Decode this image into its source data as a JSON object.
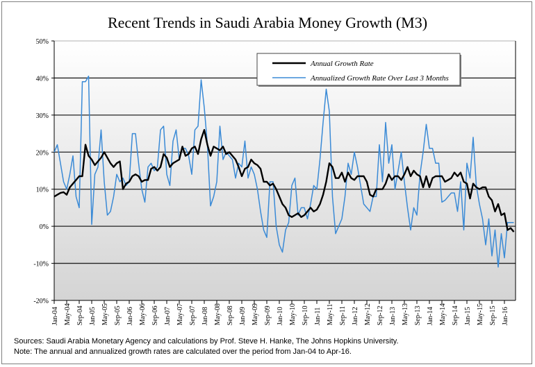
{
  "chart_data": {
    "type": "line",
    "title": "Recent Trends in Saudi Arabia Money Growth (M3)",
    "xlabel": "",
    "ylabel": "",
    "ylim": [
      -20,
      50
    ],
    "yticks": [
      "-20%",
      "-10%",
      "0%",
      "10%",
      "20%",
      "30%",
      "40%",
      "50%"
    ],
    "ytick_values": [
      -20,
      -10,
      0,
      10,
      20,
      30,
      40,
      50
    ],
    "start_month": "Jan-04",
    "end_month": "Apr-16",
    "xtick_labels": [
      "Jan-04",
      "May-04",
      "Sep-04",
      "Jan-05",
      "May-05",
      "Sep-05",
      "Jan-06",
      "May-06",
      "Sep-06",
      "Jan-07",
      "May-07",
      "Sep-07",
      "Jan-08",
      "May-08",
      "Sep-08",
      "Jan-09",
      "May-09",
      "Sep-09",
      "Jan-10",
      "May-10",
      "Sep-10",
      "Jan-11",
      "May-11",
      "Sep-11",
      "Jan-12",
      "May-12",
      "Sep-12",
      "Jan-13",
      "May-13",
      "Sep-13",
      "Jan-14",
      "May-14",
      "Sep-14",
      "Jan-15",
      "May-15",
      "Sep-15",
      "Jan-16"
    ],
    "grid": true,
    "legend_position": "top-right",
    "series": [
      {
        "name": "Annual Growth Rate",
        "color": "#000000",
        "values": [
          8,
          8.5,
          9,
          9.2,
          8.5,
          10.5,
          11.5,
          12.5,
          13.5,
          13.5,
          22,
          19,
          18,
          16.5,
          17.5,
          18.5,
          20,
          18.5,
          17,
          16,
          17,
          17.5,
          10,
          11.5,
          12,
          13.5,
          14,
          13.5,
          12,
          12.5,
          12.5,
          15.5,
          16,
          15,
          16,
          19.5,
          18.5,
          16,
          17,
          17.5,
          18,
          21.5,
          19,
          19.5,
          21,
          21.5,
          19.5,
          23.5,
          26,
          22,
          19,
          21.5,
          21,
          20.5,
          21.5,
          19.5,
          20,
          19,
          18,
          16,
          13.5,
          15.5,
          16,
          18,
          17,
          16.5,
          15.5,
          12,
          12,
          11,
          11.5,
          10,
          8,
          6,
          5,
          3,
          2.5,
          3,
          3.5,
          2.5,
          3,
          4,
          5,
          4,
          4.5,
          6,
          8.5,
          12,
          17,
          16,
          13,
          13,
          14.5,
          12,
          14.5,
          13,
          12.5,
          13.5,
          13.5,
          13.5,
          12,
          8.5,
          8,
          10,
          10,
          10,
          11.5,
          14,
          12.5,
          13.5,
          13.5,
          12.5,
          14,
          16,
          13.5,
          15,
          14,
          13.5,
          10.5,
          13.5,
          10.5,
          13,
          13.5,
          13.5,
          13.5,
          12,
          12.5,
          13,
          14.5,
          13.5,
          14.5,
          12,
          11.5,
          7.5,
          11.5,
          10.5,
          10,
          10.5,
          10.5,
          8,
          7,
          4,
          6,
          3,
          3.5,
          -1,
          -0.5,
          -1.5
        ]
      },
      {
        "name": "Annualized Growth Rate Over  Last 3 Months",
        "color": "#3a8ad6",
        "values": [
          20,
          22,
          17,
          12,
          10,
          14,
          19,
          8,
          5,
          39,
          39,
          40.5,
          0.5,
          14,
          16,
          26,
          12,
          3,
          4,
          8,
          14,
          12,
          13,
          11,
          12,
          25,
          25,
          17,
          10,
          6.5,
          16,
          17,
          15,
          16,
          26,
          27,
          14,
          11,
          23,
          26,
          18,
          21,
          21,
          19,
          14,
          26,
          27,
          39.5,
          32,
          22,
          5.5,
          8,
          12,
          27,
          18,
          20,
          19,
          18,
          13,
          17,
          16,
          23,
          13,
          16,
          14,
          10,
          4,
          -1,
          -3,
          12,
          12,
          0,
          -5,
          -7,
          -1,
          1,
          11,
          13,
          3,
          5,
          5,
          2,
          6,
          11,
          10,
          18,
          28,
          37,
          31,
          8,
          -2,
          0,
          2,
          8,
          17,
          14,
          20,
          16,
          11,
          6,
          5,
          4,
          8,
          8,
          22,
          12,
          28,
          17,
          22,
          10,
          15,
          20,
          12,
          5,
          -1,
          5,
          3,
          14,
          20,
          27.5,
          21,
          21,
          17,
          17,
          6.5,
          7,
          8,
          9,
          9,
          4,
          12,
          -1,
          17,
          13,
          24,
          11,
          6,
          2,
          -5,
          2,
          -8,
          -1,
          -11,
          -2,
          -8.5,
          1,
          1,
          1
        ]
      }
    ]
  },
  "footer": {
    "sources": "Sources: Saudi Arabia Monetary Agency and calculations by Prof. Steve H. Hanke, The Johns Hopkins University.",
    "note": "Note: The annual and annualized growth rates are calculated over the period from Jan-04 to Apr-16."
  }
}
